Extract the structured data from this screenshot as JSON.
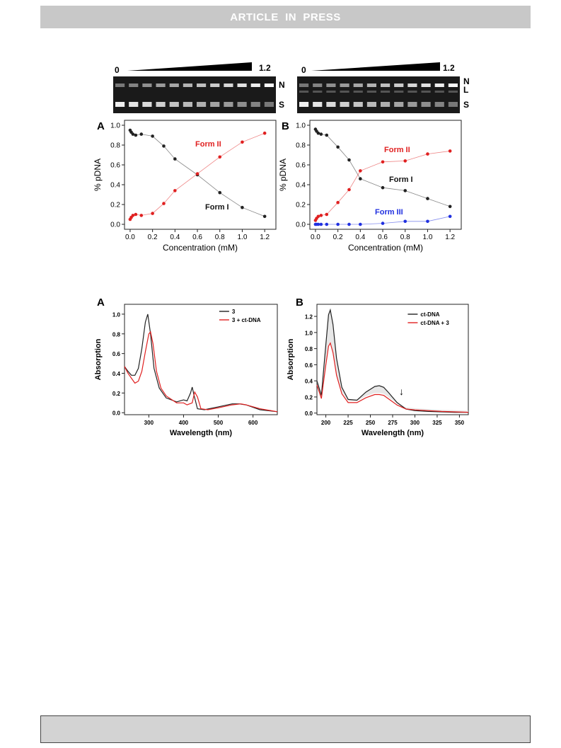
{
  "header": {
    "banner_text": "ARTICLE  IN  PRESS"
  },
  "figure1": {
    "panelA": {
      "panel_label": "A",
      "gel": {
        "start_label": "0",
        "end_label": "1.2",
        "band_labels": [
          "N",
          "S"
        ]
      },
      "annotations": [
        "Form II",
        "Form I"
      ]
    },
    "panelB": {
      "panel_label": "B",
      "gel": {
        "start_label": "0",
        "end_label": "1.2",
        "band_labels": [
          "N",
          "L",
          "S"
        ]
      },
      "annotations": [
        "Form II",
        "Form I",
        "Form III"
      ]
    }
  },
  "figure2": {
    "panelA": {
      "panel_label": "A"
    },
    "panelB": {
      "panel_label": "B",
      "arrow": "↓"
    }
  },
  "colors": {
    "black_series": "#222222",
    "red_series": "#e02020",
    "blue_series": "#2030e0",
    "gray_band": "#dddddd"
  },
  "chart_data": [
    {
      "type": "line",
      "panel": "A",
      "xlabel": "Concentration (mM)",
      "ylabel": "% pDNA",
      "xlim": [
        -0.05,
        1.3
      ],
      "ylim": [
        -0.05,
        1.05
      ],
      "xticks": [
        "0.0",
        "0.2",
        "0.4",
        "0.6",
        "0.8",
        "1.0",
        "1.2"
      ],
      "yticks": [
        "0.0",
        "0.2",
        "0.4",
        "0.6",
        "0.8",
        "1.0"
      ],
      "series": [
        {
          "name": "Form I",
          "x": [
            0,
            0.01,
            0.025,
            0.05,
            0.1,
            0.2,
            0.3,
            0.4,
            0.6,
            0.8,
            1.0,
            1.2
          ],
          "values": [
            0.95,
            0.93,
            0.91,
            0.9,
            0.91,
            0.89,
            0.79,
            0.66,
            0.5,
            0.32,
            0.17,
            0.08
          ]
        },
        {
          "name": "Form II",
          "x": [
            0,
            0.01,
            0.025,
            0.05,
            0.1,
            0.2,
            0.3,
            0.4,
            0.6,
            0.8,
            1.0,
            1.2
          ],
          "values": [
            0.05,
            0.07,
            0.09,
            0.1,
            0.09,
            0.11,
            0.21,
            0.34,
            0.51,
            0.68,
            0.83,
            0.92
          ]
        }
      ]
    },
    {
      "type": "line",
      "panel": "B",
      "xlabel": "Concentration (mM)",
      "ylabel": "% pDNA",
      "xlim": [
        -0.05,
        1.3
      ],
      "ylim": [
        -0.05,
        1.05
      ],
      "xticks": [
        "0.0",
        "0.2",
        "0.4",
        "0.6",
        "0.8",
        "1.0",
        "1.2"
      ],
      "yticks": [
        "0.0",
        "0.2",
        "0.4",
        "0.6",
        "0.8",
        "1.0"
      ],
      "series": [
        {
          "name": "Form I",
          "x": [
            0,
            0.01,
            0.025,
            0.05,
            0.1,
            0.2,
            0.3,
            0.4,
            0.6,
            0.8,
            1.0,
            1.2
          ],
          "values": [
            0.96,
            0.94,
            0.92,
            0.91,
            0.9,
            0.78,
            0.65,
            0.46,
            0.37,
            0.34,
            0.26,
            0.18
          ]
        },
        {
          "name": "Form II",
          "x": [
            0,
            0.01,
            0.025,
            0.05,
            0.1,
            0.2,
            0.3,
            0.4,
            0.6,
            0.8,
            1.0,
            1.2
          ],
          "values": [
            0.04,
            0.06,
            0.08,
            0.09,
            0.1,
            0.22,
            0.35,
            0.54,
            0.63,
            0.64,
            0.71,
            0.74
          ]
        },
        {
          "name": "Form III",
          "x": [
            0,
            0.01,
            0.025,
            0.05,
            0.1,
            0.2,
            0.3,
            0.4,
            0.6,
            0.8,
            1.0,
            1.2
          ],
          "values": [
            0,
            0,
            0,
            0,
            0,
            0,
            0,
            0,
            0.01,
            0.03,
            0.03,
            0.08
          ]
        }
      ]
    },
    {
      "type": "line",
      "panel": "A",
      "xlabel": "Wavelength (nm)",
      "ylabel": "Absorption",
      "xlim": [
        230,
        670
      ],
      "ylim": [
        -0.02,
        1.1
      ],
      "xticks": [
        "300",
        "400",
        "500",
        "600"
      ],
      "yticks": [
        "0.0",
        "0.2",
        "0.4",
        "0.6",
        "0.8",
        "1.0"
      ],
      "series": [
        {
          "name": "3",
          "x": [
            230,
            240,
            250,
            260,
            270,
            280,
            290,
            297,
            305,
            315,
            330,
            350,
            380,
            400,
            410,
            420,
            425,
            430,
            440,
            460,
            500,
            540,
            560,
            580,
            620,
            670
          ],
          "values": [
            0.47,
            0.42,
            0.38,
            0.38,
            0.45,
            0.65,
            0.92,
            1.0,
            0.8,
            0.45,
            0.25,
            0.15,
            0.11,
            0.13,
            0.12,
            0.2,
            0.26,
            0.18,
            0.04,
            0.03,
            0.06,
            0.09,
            0.09,
            0.08,
            0.03,
            0.01
          ]
        },
        {
          "name": "3 + ct-DNA",
          "x": [
            230,
            240,
            250,
            260,
            270,
            280,
            290,
            300,
            305,
            312,
            322,
            335,
            350,
            380,
            400,
            410,
            425,
            432,
            440,
            450,
            470,
            500,
            540,
            565,
            580,
            620,
            670
          ],
          "values": [
            0.47,
            0.4,
            0.35,
            0.3,
            0.32,
            0.42,
            0.62,
            0.8,
            0.82,
            0.7,
            0.42,
            0.25,
            0.17,
            0.1,
            0.1,
            0.08,
            0.1,
            0.21,
            0.16,
            0.04,
            0.03,
            0.05,
            0.08,
            0.09,
            0.08,
            0.04,
            0.01
          ]
        }
      ]
    },
    {
      "type": "line",
      "panel": "B",
      "xlabel": "Wavelength (nm)",
      "ylabel": "Absorption",
      "xlim": [
        190,
        360
      ],
      "ylim": [
        -0.02,
        1.35
      ],
      "xticks": [
        "200",
        "225",
        "250",
        "275",
        "300",
        "325",
        "350"
      ],
      "yticks": [
        "0.0",
        "0.2",
        "0.4",
        "0.6",
        "0.8",
        "1.0",
        "1.2"
      ],
      "series": [
        {
          "name": "ct-DNA",
          "x": [
            190,
            195,
            200,
            203,
            205,
            208,
            212,
            218,
            225,
            235,
            245,
            255,
            260,
            265,
            270,
            280,
            290,
            300,
            315,
            330,
            345,
            360
          ],
          "values": [
            0.4,
            0.22,
            0.85,
            1.22,
            1.28,
            1.1,
            0.68,
            0.32,
            0.17,
            0.16,
            0.26,
            0.33,
            0.34,
            0.32,
            0.26,
            0.13,
            0.05,
            0.03,
            0.02,
            0.015,
            0.01,
            0.01
          ]
        },
        {
          "name": "ct-DNA + 3",
          "x": [
            190,
            195,
            200,
            203,
            205,
            208,
            212,
            218,
            225,
            235,
            245,
            255,
            260,
            265,
            270,
            280,
            290,
            300,
            315,
            330,
            345,
            360
          ],
          "values": [
            0.35,
            0.18,
            0.6,
            0.83,
            0.87,
            0.75,
            0.47,
            0.24,
            0.13,
            0.13,
            0.19,
            0.23,
            0.23,
            0.22,
            0.18,
            0.1,
            0.05,
            0.04,
            0.03,
            0.02,
            0.015,
            0.01
          ]
        }
      ]
    }
  ]
}
